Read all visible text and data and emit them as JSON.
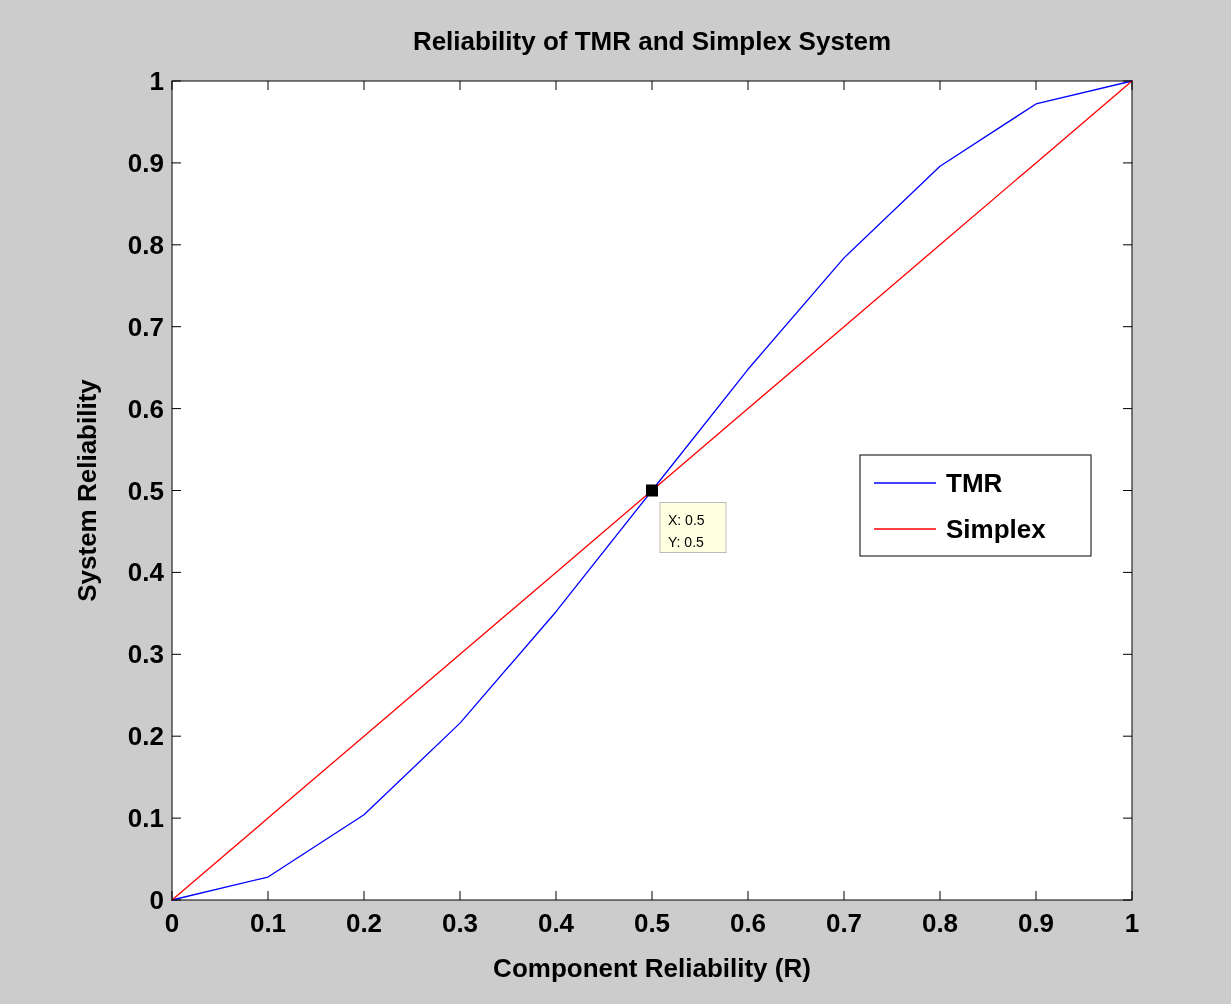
{
  "chart_data": {
    "type": "line",
    "title": "Reliability of TMR and Simplex System",
    "xlabel": "Component Reliability (R)",
    "ylabel": "System Reliability",
    "x": [
      0,
      0.1,
      0.2,
      0.3,
      0.4,
      0.5,
      0.6,
      0.7,
      0.8,
      0.9,
      1
    ],
    "series": [
      {
        "name": "TMR",
        "color": "#0000ff",
        "values": [
          0,
          0.028,
          0.104,
          0.216,
          0.352,
          0.5,
          0.648,
          0.784,
          0.896,
          0.972,
          1
        ]
      },
      {
        "name": "Simplex",
        "color": "#ff0000",
        "values": [
          0,
          0.1,
          0.2,
          0.3,
          0.4,
          0.5,
          0.6,
          0.7,
          0.8,
          0.9,
          1
        ]
      }
    ],
    "xlim": [
      0,
      1
    ],
    "ylim": [
      0,
      1
    ],
    "xticks": [
      0,
      0.1,
      0.2,
      0.3,
      0.4,
      0.5,
      0.6,
      0.7,
      0.8,
      0.9,
      1
    ],
    "yticks": [
      0,
      0.1,
      0.2,
      0.3,
      0.4,
      0.5,
      0.6,
      0.7,
      0.8,
      0.9,
      1
    ],
    "legend": "right",
    "grid": false,
    "line_style": "solid",
    "annotations": [
      {
        "text": "X: 0.5",
        "x": 0.5,
        "y": 0.5
      },
      "Y: 0.5"
    ]
  }
}
